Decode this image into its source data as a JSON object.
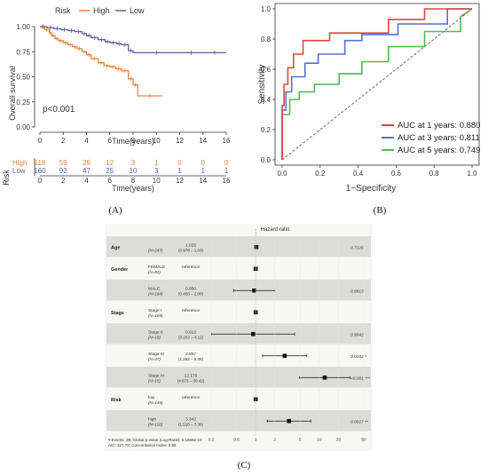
{
  "panel_a": {
    "caption": "(A)",
    "legend": {
      "title": "Risk",
      "high": "High",
      "low": "Low"
    },
    "ylabel": "Overall survival",
    "xlabel": "Time(years)",
    "pvalue": "p<0.001",
    "y_ticks": [
      "0.00",
      "0.25",
      "0.50",
      "0.75",
      "1.00"
    ],
    "x_ticks": [
      "0",
      "2",
      "4",
      "6",
      "8",
      "10",
      "12",
      "14",
      "16"
    ],
    "risk_table": {
      "label": "Risk",
      "rows": [
        {
          "name": "High",
          "values": [
            "118",
            "59",
            "29",
            "12",
            "3",
            "1",
            "0",
            "0",
            "0"
          ]
        },
        {
          "name": "Low",
          "values": [
            "160",
            "92",
            "47",
            "25",
            "10",
            "3",
            "1",
            "1",
            "1"
          ]
        }
      ],
      "xlabel": "Time(years)"
    },
    "colors": {
      "high": "#e8833a",
      "low": "#5b5ea6"
    }
  },
  "panel_b": {
    "caption": "(B)",
    "ylabel": "Sensitivity",
    "xlabel": "1−Specificity",
    "ticks": [
      "0.0",
      "0.2",
      "0.4",
      "0.6",
      "0.8",
      "1.0"
    ],
    "legend": [
      {
        "label": "AUC at 1 years: 0.880",
        "color": "#e0473e"
      },
      {
        "label": "AUC at 3 years: 0.811",
        "color": "#5b6fc9"
      },
      {
        "label": "AUC at 5 years: 0.749",
        "color": "#4fb84f"
      }
    ]
  },
  "panel_c": {
    "caption": "(C)",
    "title": "Hazard ratio",
    "rows": [
      {
        "var": "Age",
        "level": "",
        "n": "(N=247)",
        "hr": "1.025",
        "ci": "(0.978 – 1.03)",
        "p": "0.7126",
        "shade": true
      },
      {
        "var": "Gender",
        "level": "FEMALE",
        "n": "(N=83)",
        "hr": "reference",
        "ci": "",
        "p": "",
        "shade": false
      },
      {
        "var": "",
        "level": "MALE",
        "n": "(N=164)",
        "hr": "0.950",
        "ci": "(0.450 – 2.00)",
        "p": "0.8913",
        "shade": true
      },
      {
        "var": "Stage",
        "level": "Stage I",
        "n": "(N=165)",
        "hr": "reference",
        "ci": "",
        "p": "",
        "shade": false
      },
      {
        "var": "",
        "level": "Stage II",
        "n": "(N=18)",
        "hr": "0.912",
        "ci": "(0.202 – 4.11)",
        "p": "0.9042",
        "shade": true
      },
      {
        "var": "",
        "level": "Stage III",
        "n": "(N=47)",
        "hr": "2.857",
        "ci": "(1.282 – 6.36)",
        "p": "0.0102 *",
        "shade": false
      },
      {
        "var": "",
        "level": "Stage IV",
        "n": "(N=15)",
        "hr": "12.175",
        "ci": "(4.873 – 30.42)",
        "p": "<0.001 ***",
        "shade": true
      },
      {
        "var": "Risk",
        "level": "low",
        "n": "(N=145)",
        "hr": "reference",
        "ci": "",
        "p": "",
        "shade": false
      },
      {
        "var": "",
        "level": "high",
        "n": "(N=102)",
        "hr": "3.342",
        "ci": "(1.518 – 7.36)",
        "p": "0.0027 **",
        "shade": true
      }
    ],
    "footer1": "# Events: 39; Global p-value (Log-Rank): 6.1866e-10",
    "footer2": "AIC: 327.78; Concordance Index: 0.86",
    "x_ticks": [
      "0.2",
      "0.5",
      "1",
      "2",
      "5",
      "10",
      "20",
      "50"
    ]
  },
  "chart_data": [
    {
      "type": "line",
      "title": "",
      "xlabel": "Time(years)",
      "ylabel": "Overall survival",
      "xlim": [
        0,
        16
      ],
      "ylim": [
        0,
        1
      ],
      "annotation": "p<0.001",
      "series": [
        {
          "name": "High",
          "x": [
            0,
            0.4,
            0.8,
            1,
            1.3,
            1.6,
            2,
            2.4,
            2.8,
            3.2,
            3.6,
            4,
            4.4,
            5,
            5.5,
            6,
            6.5,
            7,
            7.6,
            8,
            8.4,
            10.5
          ],
          "y": [
            1.0,
            0.97,
            0.94,
            0.91,
            0.88,
            0.86,
            0.84,
            0.82,
            0.8,
            0.78,
            0.75,
            0.72,
            0.68,
            0.64,
            0.61,
            0.6,
            0.58,
            0.56,
            0.48,
            0.42,
            0.31,
            0.31
          ]
        },
        {
          "name": "Low",
          "x": [
            0,
            0.6,
            1.2,
            1.8,
            2.4,
            3,
            3.6,
            4,
            4.4,
            5,
            5.6,
            6,
            6.6,
            7,
            7.6,
            8,
            12,
            14,
            16
          ],
          "y": [
            1.0,
            0.99,
            0.98,
            0.97,
            0.96,
            0.95,
            0.93,
            0.91,
            0.89,
            0.87,
            0.85,
            0.84,
            0.83,
            0.82,
            0.76,
            0.74,
            0.74,
            0.74,
            0.74
          ]
        }
      ]
    },
    {
      "type": "line",
      "title": "",
      "xlabel": "1−Specificity",
      "ylabel": "Sensitivity",
      "xlim": [
        0,
        1
      ],
      "ylim": [
        0,
        1
      ],
      "series": [
        {
          "name": "AUC at 1 years: 0.880",
          "x": [
            0,
            0,
            0.01,
            0.01,
            0.03,
            0.03,
            0.06,
            0.06,
            0.11,
            0.11,
            0.25,
            0.25,
            0.56,
            0.56,
            0.75,
            0.75,
            1.0
          ],
          "y": [
            0,
            0.36,
            0.36,
            0.5,
            0.5,
            0.61,
            0.61,
            0.7,
            0.7,
            0.79,
            0.79,
            0.84,
            0.84,
            0.93,
            0.93,
            1.0,
            1.0
          ]
        },
        {
          "name": "AUC at 3 years: 0.811",
          "x": [
            0,
            0,
            0.02,
            0.02,
            0.05,
            0.05,
            0.12,
            0.12,
            0.19,
            0.19,
            0.33,
            0.33,
            0.42,
            0.42,
            0.61,
            0.61,
            0.87,
            0.87,
            1.0
          ],
          "y": [
            0,
            0.33,
            0.33,
            0.45,
            0.45,
            0.55,
            0.55,
            0.64,
            0.64,
            0.7,
            0.7,
            0.79,
            0.79,
            0.83,
            0.83,
            0.9,
            0.9,
            1.0,
            1.0
          ]
        },
        {
          "name": "AUC at 5 years: 0.749",
          "x": [
            0,
            0,
            0.04,
            0.04,
            0.09,
            0.09,
            0.17,
            0.17,
            0.3,
            0.3,
            0.42,
            0.42,
            0.56,
            0.56,
            0.75,
            0.75,
            0.94,
            0.94,
            1.0
          ],
          "y": [
            0,
            0.3,
            0.3,
            0.4,
            0.4,
            0.45,
            0.45,
            0.5,
            0.5,
            0.57,
            0.57,
            0.65,
            0.65,
            0.75,
            0.75,
            0.85,
            0.85,
            0.95,
            1.0
          ]
        }
      ]
    },
    {
      "type": "scatter",
      "title": "Hazard ratio",
      "xlabel": "",
      "x_scale": "log",
      "xlim": [
        0.2,
        50
      ],
      "categories": [
        "Age",
        "FEMALE",
        "MALE",
        "Stage I",
        "Stage II",
        "Stage III",
        "Stage IV",
        "low",
        "high"
      ],
      "series": [
        {
          "name": "HR",
          "values": [
            1.025,
            1,
            0.95,
            1,
            0.912,
            2.857,
            12.175,
            1,
            3.342
          ],
          "ci_low": [
            0.978,
            null,
            0.45,
            null,
            0.202,
            1.282,
            4.873,
            null,
            1.518
          ],
          "ci_high": [
            1.03,
            null,
            2.0,
            null,
            4.11,
            6.36,
            30.42,
            null,
            7.36
          ]
        }
      ]
    }
  ]
}
